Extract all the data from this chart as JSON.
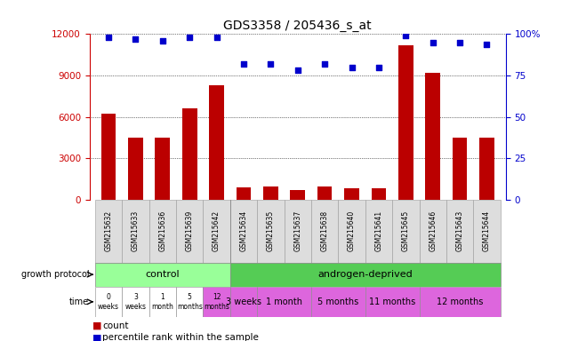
{
  "title": "GDS3358 / 205436_s_at",
  "samples": [
    "GSM215632",
    "GSM215633",
    "GSM215636",
    "GSM215639",
    "GSM215642",
    "GSM215634",
    "GSM215635",
    "GSM215637",
    "GSM215638",
    "GSM215640",
    "GSM215641",
    "GSM215645",
    "GSM215646",
    "GSM215643",
    "GSM215644"
  ],
  "counts": [
    6200,
    4500,
    4500,
    6600,
    8300,
    900,
    950,
    700,
    950,
    800,
    800,
    11200,
    9200,
    4500,
    4500
  ],
  "percentiles": [
    98,
    97,
    96,
    98,
    98,
    82,
    82,
    78,
    82,
    80,
    80,
    99,
    95,
    95,
    94
  ],
  "bar_color": "#bb0000",
  "dot_color": "#0000cc",
  "ylim_left": [
    0,
    12000
  ],
  "ylim_right": [
    0,
    100
  ],
  "yticks_left": [
    0,
    3000,
    6000,
    9000,
    12000
  ],
  "yticks_right": [
    0,
    25,
    50,
    75,
    100
  ],
  "control_n": 5,
  "androgen_n": 10,
  "protocol_control_label": "control",
  "protocol_androgen_label": "androgen-deprived",
  "control_color": "#99ff99",
  "androgen_color": "#55cc55",
  "control_times": [
    "0\nweeks",
    "3\nweeks",
    "1\nmonth",
    "5\nmonths",
    "12\nmonths"
  ],
  "androgen_times": [
    "3 weeks",
    "1 month",
    "5 months",
    "11 months",
    "12 months"
  ],
  "androgen_samples_per_time": [
    1,
    2,
    2,
    2,
    3
  ],
  "time_bg_white": "#ffffff",
  "time_bg_pink": "#dd66dd",
  "label_color_left": "#cc0000",
  "label_color_right": "#0000cc",
  "background_color": "#ffffff",
  "legend_count": "count",
  "legend_pct": "percentile rank within the sample"
}
